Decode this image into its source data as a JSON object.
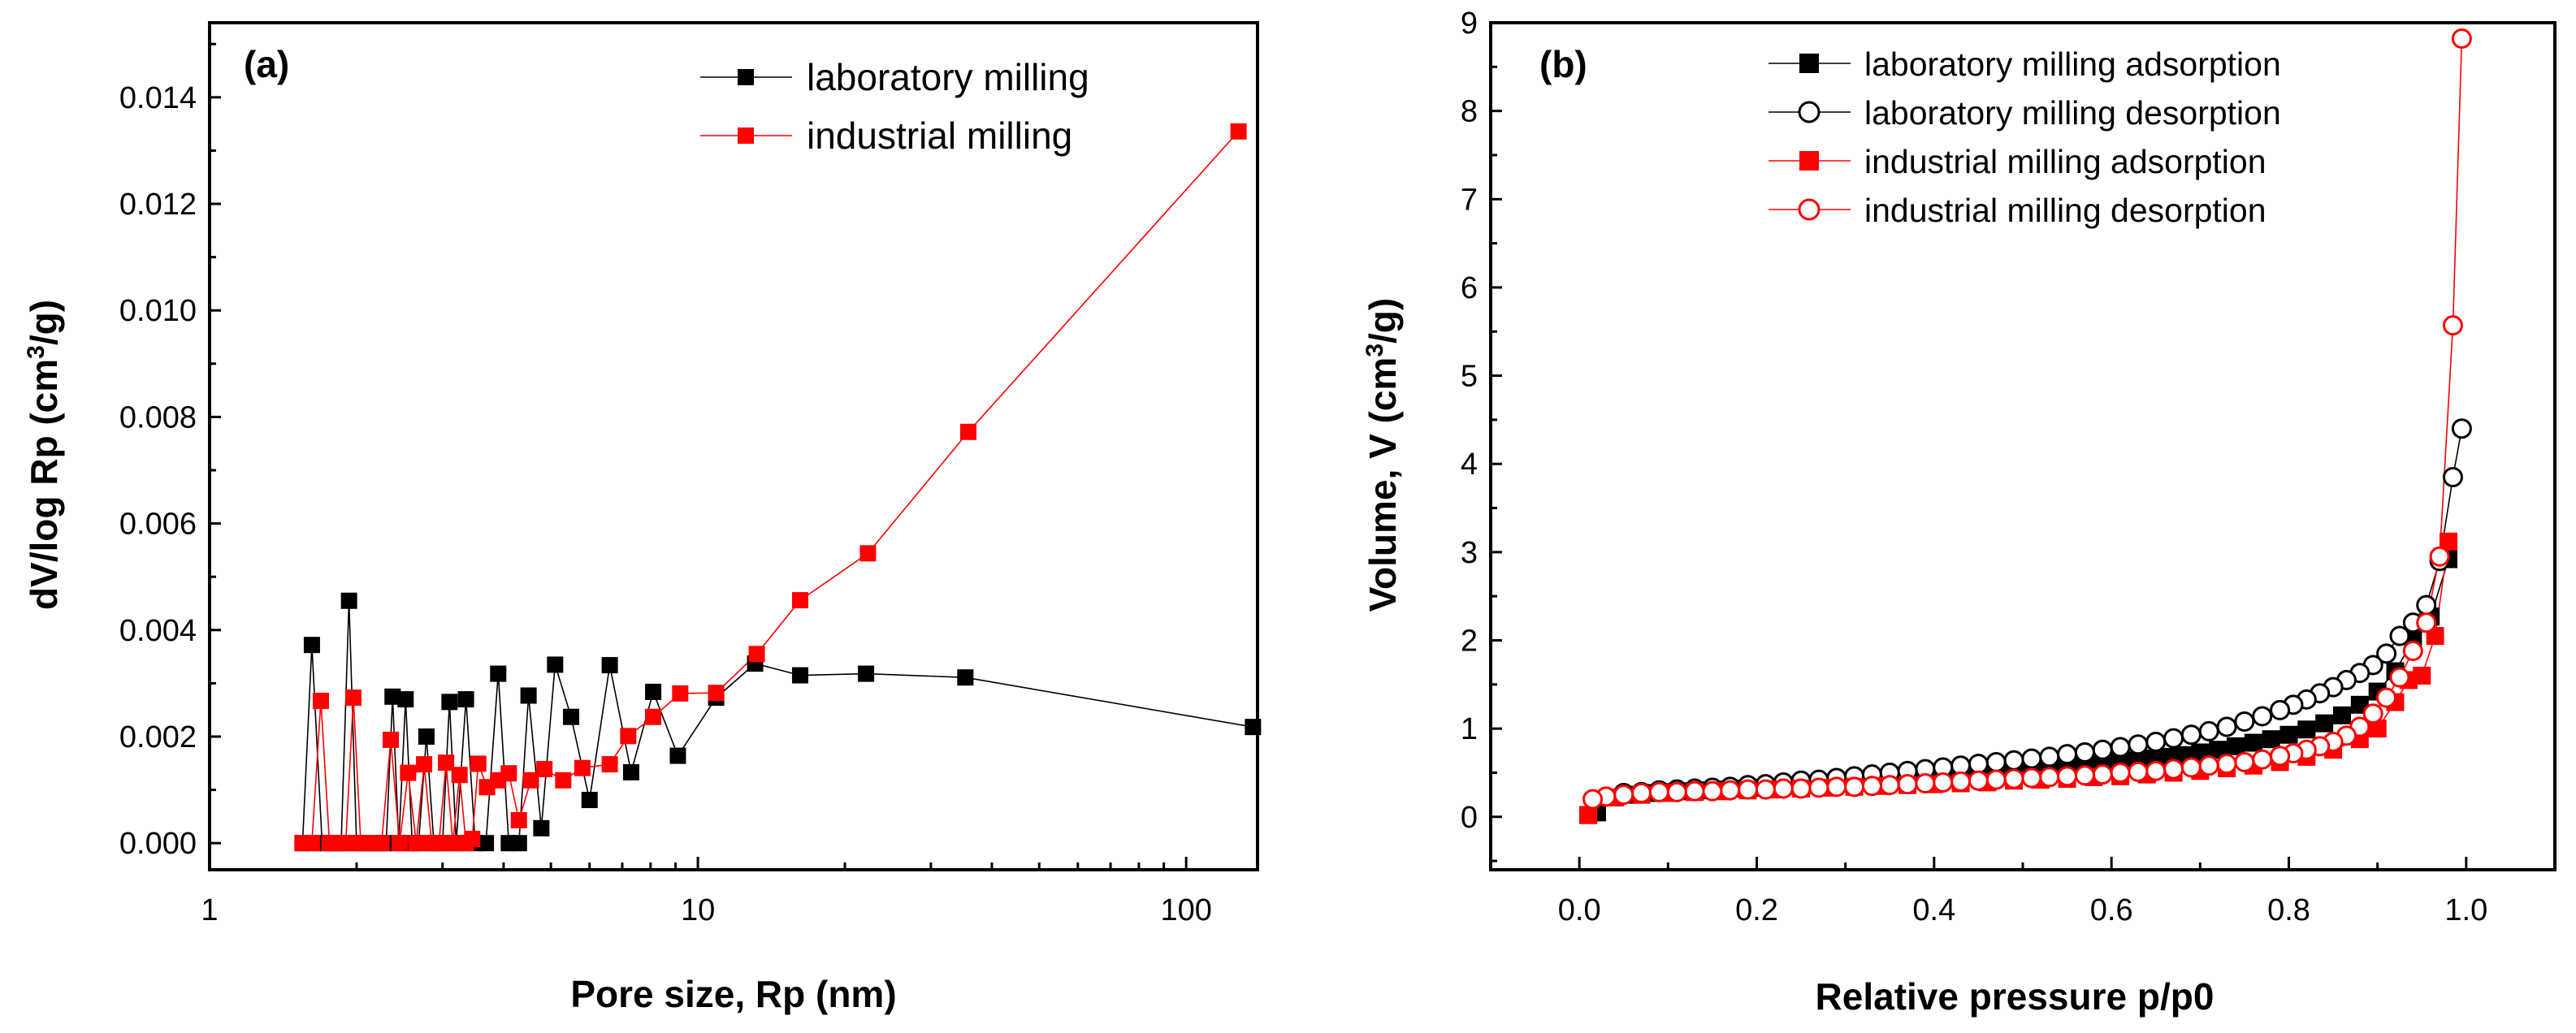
{
  "chart_data": [
    {
      "panel_label": "(a)",
      "type": "line",
      "xscale": "log",
      "xlabel": "Pore size, Rp (nm)",
      "ylabel_parts": [
        "dV/log Rp (cm",
        "3",
        "/g)"
      ],
      "xlim": [
        1,
        140
      ],
      "ylim": [
        -0.0005,
        0.0154
      ],
      "xticks": [
        1,
        10,
        100
      ],
      "xtick_labels": [
        "1",
        "10",
        "100"
      ],
      "yticks": [
        0,
        0.002,
        0.004,
        0.006,
        0.008,
        0.01,
        0.012,
        0.014
      ],
      "ytick_labels": [
        "0.000",
        "0.002",
        "0.004",
        "0.006",
        "0.008",
        "0.010",
        "0.012",
        "0.014"
      ],
      "legend_position": "top-right",
      "series": [
        {
          "name": "laboratory milling",
          "color": "#000000",
          "marker": "square-filled",
          "x": [
            1.55,
            1.62,
            1.7,
            1.78,
            1.86,
            1.93,
            2.0,
            2.08,
            2.15,
            2.22,
            2.3,
            2.37,
            2.44,
            2.52,
            2.6,
            2.68,
            2.78,
            2.88,
            3.0,
            3.1,
            3.2,
            3.35,
            3.5,
            3.68,
            3.9,
            4.1,
            4.3,
            4.5,
            4.78,
            5.1,
            5.5,
            6.0,
            6.6,
            7.3,
            8.1,
            9.1,
            10.9,
            13.1,
            16.2,
            22.1,
            35.3,
            137
          ],
          "y": [
            0,
            0.00372,
            0,
            0,
            0,
            0.00455,
            0,
            0,
            0,
            0,
            0,
            0.00275,
            0,
            0.0027,
            0,
            0,
            0.002,
            0,
            0,
            0.00265,
            0,
            0.0027,
            0,
            0,
            0.00318,
            0,
            0,
            0.00277,
            0.00028,
            0.00335,
            0.00237,
            0.00081,
            0.00334,
            0.00133,
            0.00284,
            0.00164,
            0.00273,
            0.00337,
            0.00315,
            0.00318,
            0.00311,
            0.00218
          ]
        },
        {
          "name": "industrial milling",
          "color": "#ff0000",
          "marker": "square-filled",
          "x": [
            1.55,
            1.62,
            1.69,
            1.76,
            1.83,
            1.9,
            1.97,
            2.04,
            2.11,
            2.18,
            2.25,
            2.35,
            2.45,
            2.55,
            2.65,
            2.75,
            2.85,
            2.95,
            3.05,
            3.15,
            3.25,
            3.35,
            3.45,
            3.55,
            3.7,
            3.9,
            4.1,
            4.3,
            4.55,
            4.85,
            5.3,
            5.8,
            6.6,
            7.2,
            8.1,
            9.2,
            10.9,
            13.2,
            16.2,
            22.3,
            35.8,
            128
          ],
          "y": [
            0,
            0,
            0.00267,
            0,
            0,
            0,
            0.00273,
            0,
            0,
            0,
            0,
            0.00194,
            0,
            0.00132,
            0,
            0.00148,
            0,
            0,
            0.00151,
            0,
            0.00128,
            0,
            8e-05,
            0.00149,
            0.00105,
            0.00118,
            0.00131,
            0.00043,
            0.00118,
            0.00139,
            0.00118,
            0.00141,
            0.00148,
            0.00201,
            0.00237,
            0.00281,
            0.00282,
            0.00355,
            0.00456,
            0.00544,
            0.00772,
            0.01336
          ]
        }
      ]
    },
    {
      "panel_label": "(b)",
      "type": "scatter",
      "xlabel": "Relative pressure p/p0",
      "ylabel_parts": [
        "Volume, V (cm",
        "3",
        "/g)"
      ],
      "xlim": [
        -0.1,
        1.1
      ],
      "ylim": [
        -0.6,
        9
      ],
      "xticks": [
        0,
        0.2,
        0.4,
        0.6,
        0.8,
        1.0
      ],
      "xtick_labels": [
        "0.0",
        "0.2",
        "0.4",
        "0.6",
        "0.8",
        "1.0"
      ],
      "yticks": [
        0,
        1,
        2,
        3,
        4,
        5,
        6,
        7,
        8,
        9
      ],
      "ytick_labels": [
        "0",
        "1",
        "2",
        "3",
        "4",
        "5",
        "6",
        "7",
        "8",
        "9"
      ],
      "legend_position": "top-right",
      "series": [
        {
          "name": "laboratory milling adsorption",
          "color": "#000000",
          "marker": "square-filled",
          "x": [
            0.01,
            0.02,
            0.04,
            0.06,
            0.08,
            0.1,
            0.12,
            0.14,
            0.16,
            0.18,
            0.2,
            0.22,
            0.24,
            0.26,
            0.28,
            0.3,
            0.32,
            0.34,
            0.36,
            0.38,
            0.4,
            0.42,
            0.44,
            0.46,
            0.48,
            0.5,
            0.52,
            0.54,
            0.56,
            0.58,
            0.6,
            0.62,
            0.64,
            0.66,
            0.68,
            0.7,
            0.72,
            0.74,
            0.76,
            0.78,
            0.8,
            0.82,
            0.84,
            0.86,
            0.88,
            0.9,
            0.92,
            0.94,
            0.96,
            0.98
          ],
          "y": [
            0.02,
            0.05,
            0.22,
            0.25,
            0.27,
            0.28,
            0.29,
            0.3,
            0.31,
            0.32,
            0.33,
            0.34,
            0.35,
            0.36,
            0.37,
            0.38,
            0.39,
            0.4,
            0.41,
            0.43,
            0.44,
            0.46,
            0.47,
            0.49,
            0.5,
            0.52,
            0.54,
            0.56,
            0.58,
            0.6,
            0.62,
            0.64,
            0.66,
            0.68,
            0.7,
            0.73,
            0.76,
            0.8,
            0.84,
            0.88,
            0.93,
            0.99,
            1.06,
            1.15,
            1.27,
            1.42,
            1.65,
            2.0,
            2.27,
            2.92
          ]
        },
        {
          "name": "laboratory milling desorption",
          "color": "#000000",
          "marker": "circle-open",
          "x": [
            0.995,
            0.985,
            0.97,
            0.955,
            0.94,
            0.925,
            0.91,
            0.895,
            0.88,
            0.865,
            0.85,
            0.835,
            0.82,
            0.805,
            0.79,
            0.77,
            0.75,
            0.73,
            0.71,
            0.69,
            0.67,
            0.65,
            0.63,
            0.61,
            0.59,
            0.57,
            0.55,
            0.53,
            0.51,
            0.49,
            0.47,
            0.45,
            0.43,
            0.41,
            0.39,
            0.37,
            0.35,
            0.33,
            0.31,
            0.29,
            0.27,
            0.25,
            0.23,
            0.21,
            0.19,
            0.17,
            0.15,
            0.13,
            0.11,
            0.09,
            0.07,
            0.05
          ],
          "y": [
            4.4,
            3.85,
            2.9,
            2.4,
            2.2,
            2.05,
            1.85,
            1.72,
            1.63,
            1.55,
            1.47,
            1.4,
            1.33,
            1.27,
            1.21,
            1.14,
            1.08,
            1.02,
            0.97,
            0.93,
            0.89,
            0.85,
            0.82,
            0.79,
            0.76,
            0.73,
            0.71,
            0.68,
            0.66,
            0.64,
            0.62,
            0.6,
            0.58,
            0.56,
            0.54,
            0.52,
            0.5,
            0.48,
            0.46,
            0.44,
            0.42,
            0.41,
            0.39,
            0.37,
            0.36,
            0.34,
            0.33,
            0.32,
            0.31,
            0.3,
            0.28,
            0.27
          ]
        },
        {
          "name": "industrial milling adsorption",
          "color": "#ff0000",
          "marker": "square-filled",
          "x": [
            0.01,
            0.04,
            0.07,
            0.1,
            0.13,
            0.16,
            0.19,
            0.22,
            0.25,
            0.28,
            0.31,
            0.34,
            0.37,
            0.4,
            0.43,
            0.46,
            0.49,
            0.52,
            0.55,
            0.58,
            0.61,
            0.64,
            0.67,
            0.7,
            0.73,
            0.76,
            0.79,
            0.82,
            0.85,
            0.88,
            0.9,
            0.92,
            0.935,
            0.95,
            0.965,
            0.98
          ],
          "y": [
            0.02,
            0.22,
            0.25,
            0.27,
            0.28,
            0.29,
            0.3,
            0.31,
            0.32,
            0.33,
            0.34,
            0.35,
            0.36,
            0.37,
            0.38,
            0.39,
            0.41,
            0.42,
            0.43,
            0.45,
            0.46,
            0.48,
            0.5,
            0.52,
            0.55,
            0.58,
            0.62,
            0.68,
            0.76,
            0.88,
            1.0,
            1.3,
            1.55,
            1.6,
            2.05,
            3.12
          ]
        },
        {
          "name": "industrial milling desorption",
          "color": "#ff0000",
          "marker": "circle-open",
          "x": [
            0.995,
            0.985,
            0.97,
            0.955,
            0.94,
            0.925,
            0.91,
            0.895,
            0.88,
            0.865,
            0.85,
            0.835,
            0.82,
            0.805,
            0.79,
            0.77,
            0.75,
            0.73,
            0.71,
            0.69,
            0.67,
            0.65,
            0.63,
            0.61,
            0.59,
            0.57,
            0.55,
            0.53,
            0.51,
            0.49,
            0.47,
            0.45,
            0.43,
            0.41,
            0.39,
            0.37,
            0.35,
            0.33,
            0.31,
            0.29,
            0.27,
            0.25,
            0.23,
            0.21,
            0.19,
            0.17,
            0.15,
            0.13,
            0.11,
            0.09,
            0.07,
            0.05,
            0.03,
            0.015
          ],
          "y": [
            8.82,
            5.57,
            2.95,
            2.2,
            1.88,
            1.58,
            1.35,
            1.17,
            1.02,
            0.92,
            0.85,
            0.8,
            0.76,
            0.72,
            0.69,
            0.65,
            0.62,
            0.6,
            0.58,
            0.56,
            0.54,
            0.52,
            0.51,
            0.5,
            0.48,
            0.47,
            0.46,
            0.45,
            0.44,
            0.43,
            0.42,
            0.41,
            0.4,
            0.39,
            0.38,
            0.37,
            0.36,
            0.35,
            0.34,
            0.34,
            0.33,
            0.32,
            0.32,
            0.31,
            0.31,
            0.3,
            0.29,
            0.29,
            0.28,
            0.28,
            0.27,
            0.25,
            0.23,
            0.2
          ]
        }
      ]
    }
  ]
}
